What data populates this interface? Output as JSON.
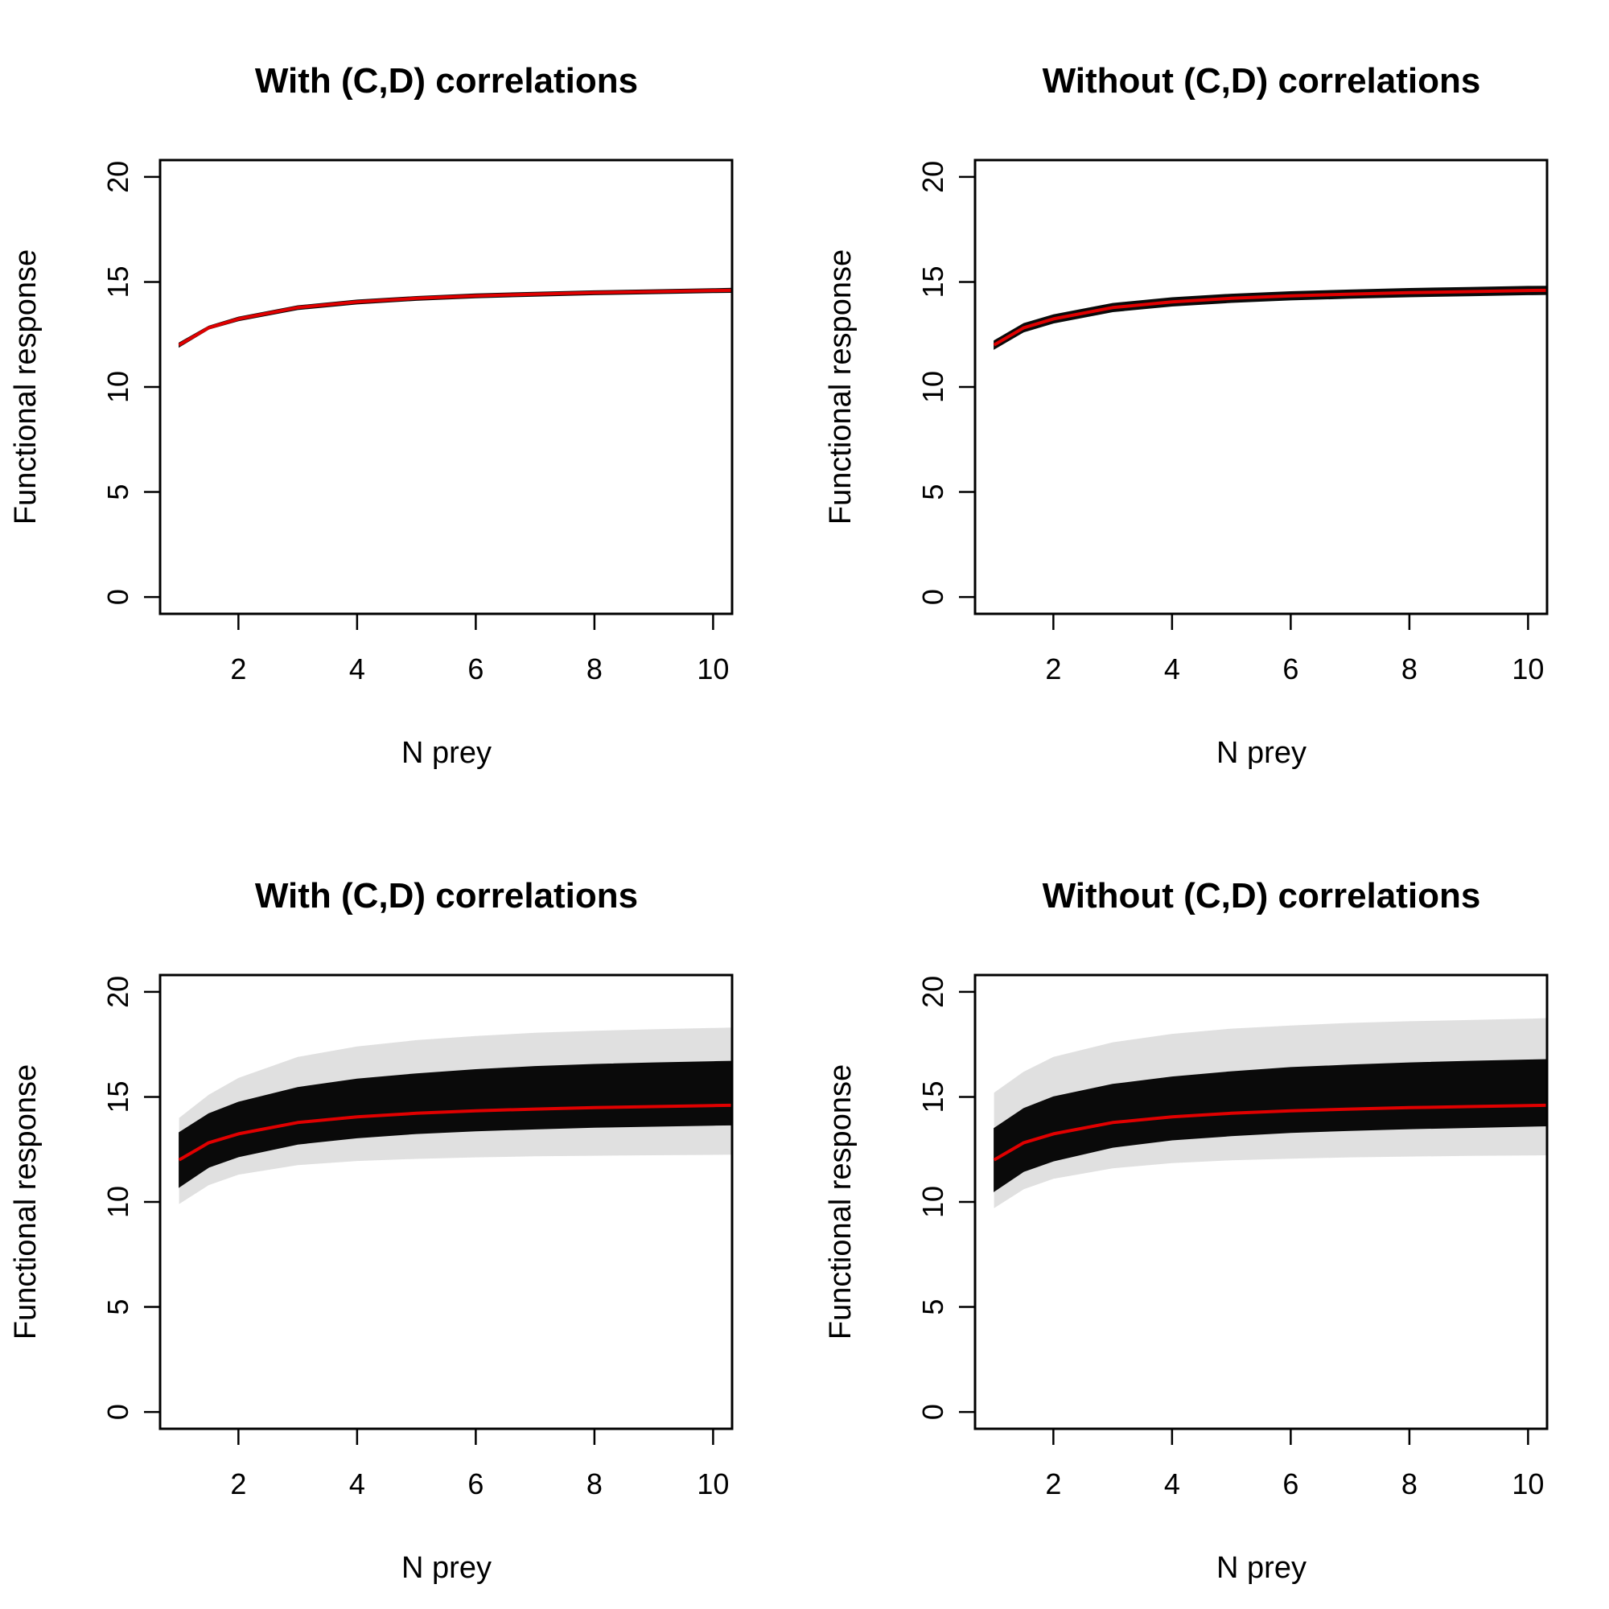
{
  "chart_data": [
    {
      "type": "line",
      "title": "With (C,D) correlations",
      "xlabel": "N prey",
      "ylabel": "Functional response",
      "xlim": [
        0.68,
        10.32
      ],
      "ylim": [
        -0.8,
        20.8
      ],
      "xticks": [
        2,
        4,
        6,
        8,
        10
      ],
      "xtick_labels": [
        "2",
        "4",
        "6",
        "8",
        "10"
      ],
      "yticks": [
        0,
        5,
        10,
        15,
        20
      ],
      "ytick_labels": [
        "0",
        "5",
        "10",
        "15",
        "20"
      ],
      "x": [
        1,
        1.5,
        2,
        3,
        4,
        5,
        6,
        7,
        8,
        9,
        10,
        10.32
      ],
      "series": [
        {
          "role": "mean",
          "color": "#e00000",
          "values": [
            12.0,
            12.82,
            13.24,
            13.78,
            14.05,
            14.22,
            14.34,
            14.42,
            14.49,
            14.54,
            14.59,
            14.6
          ]
        }
      ],
      "band": {
        "color": "#0a0a0a",
        "lower": [
          11.9,
          12.75,
          13.15,
          13.68,
          13.95,
          14.12,
          14.24,
          14.32,
          14.39,
          14.44,
          14.49,
          14.5
        ],
        "upper": [
          12.1,
          12.9,
          13.33,
          13.87,
          14.14,
          14.31,
          14.43,
          14.51,
          14.58,
          14.63,
          14.68,
          14.7
        ]
      },
      "grid": false
    },
    {
      "type": "line",
      "title": "Without (C,D) correlations",
      "xlabel": "N prey",
      "ylabel": "Functional response",
      "xlim": [
        0.68,
        10.32
      ],
      "ylim": [
        -0.8,
        20.8
      ],
      "xticks": [
        2,
        4,
        6,
        8,
        10
      ],
      "xtick_labels": [
        "2",
        "4",
        "6",
        "8",
        "10"
      ],
      "yticks": [
        0,
        5,
        10,
        15,
        20
      ],
      "ytick_labels": [
        "0",
        "5",
        "10",
        "15",
        "20"
      ],
      "x": [
        1,
        1.5,
        2,
        3,
        4,
        5,
        6,
        7,
        8,
        9,
        10,
        10.32
      ],
      "series": [
        {
          "role": "mean",
          "color": "#e00000",
          "values": [
            12.0,
            12.82,
            13.24,
            13.78,
            14.05,
            14.22,
            14.34,
            14.42,
            14.49,
            14.54,
            14.59,
            14.6
          ]
        }
      ],
      "band": {
        "color": "#0a0a0a",
        "lower": [
          11.8,
          12.62,
          13.04,
          13.58,
          13.85,
          14.02,
          14.14,
          14.22,
          14.29,
          14.34,
          14.39,
          14.4
        ],
        "upper": [
          12.2,
          13.02,
          13.44,
          13.98,
          14.25,
          14.42,
          14.54,
          14.62,
          14.69,
          14.74,
          14.79,
          14.8
        ]
      },
      "grid": false
    },
    {
      "type": "line",
      "title": "With (C,D) correlations",
      "xlabel": "N prey",
      "ylabel": "Functional response",
      "xlim": [
        0.68,
        10.32
      ],
      "ylim": [
        -0.8,
        20.8
      ],
      "xticks": [
        2,
        4,
        6,
        8,
        10
      ],
      "xtick_labels": [
        "2",
        "4",
        "6",
        "8",
        "10"
      ],
      "yticks": [
        0,
        5,
        10,
        15,
        20
      ],
      "ytick_labels": [
        "0",
        "5",
        "10",
        "15",
        "20"
      ],
      "x": [
        1,
        1.5,
        2,
        3,
        4,
        5,
        6,
        7,
        8,
        9,
        10,
        10.32
      ],
      "series": [
        {
          "role": "mean",
          "color": "#e00000",
          "values": [
            12.0,
            12.82,
            13.24,
            13.78,
            14.05,
            14.22,
            14.34,
            14.42,
            14.49,
            14.54,
            14.59,
            14.6
          ]
        }
      ],
      "band": {
        "color": "#0a0a0a",
        "lower": [
          10.7,
          11.65,
          12.15,
          12.75,
          13.05,
          13.25,
          13.38,
          13.47,
          13.55,
          13.6,
          13.65,
          13.66
        ],
        "upper": [
          13.3,
          14.2,
          14.75,
          15.45,
          15.85,
          16.1,
          16.3,
          16.45,
          16.55,
          16.62,
          16.68,
          16.7
        ]
      },
      "band_faint": {
        "color": "#bbbbbb",
        "lower": [
          9.9,
          10.8,
          11.3,
          11.75,
          11.95,
          12.05,
          12.12,
          12.17,
          12.2,
          12.22,
          12.24,
          12.25
        ],
        "upper": [
          14.0,
          15.1,
          15.9,
          16.9,
          17.4,
          17.7,
          17.9,
          18.05,
          18.15,
          18.22,
          18.28,
          18.3
        ]
      },
      "grid": false
    },
    {
      "type": "line",
      "title": "Without (C,D) correlations",
      "xlabel": "N prey",
      "ylabel": "Functional response",
      "xlim": [
        0.68,
        10.32
      ],
      "ylim": [
        -0.8,
        20.8
      ],
      "xticks": [
        2,
        4,
        6,
        8,
        10
      ],
      "xtick_labels": [
        "2",
        "4",
        "6",
        "8",
        "10"
      ],
      "yticks": [
        0,
        5,
        10,
        15,
        20
      ],
      "ytick_labels": [
        "0",
        "5",
        "10",
        "15",
        "20"
      ],
      "x": [
        1,
        1.5,
        2,
        3,
        4,
        5,
        6,
        7,
        8,
        9,
        10,
        10.32
      ],
      "series": [
        {
          "role": "mean",
          "color": "#e00000",
          "values": [
            12.0,
            12.82,
            13.24,
            13.78,
            14.05,
            14.22,
            14.34,
            14.42,
            14.49,
            14.54,
            14.59,
            14.6
          ]
        }
      ],
      "band": {
        "color": "#0a0a0a",
        "lower": [
          10.5,
          11.45,
          11.95,
          12.6,
          12.95,
          13.15,
          13.3,
          13.4,
          13.48,
          13.54,
          13.6,
          13.62
        ],
        "upper": [
          13.5,
          14.45,
          15.0,
          15.6,
          15.95,
          16.2,
          16.4,
          16.52,
          16.62,
          16.7,
          16.76,
          16.78
        ]
      },
      "band_faint": {
        "color": "#bbbbbb",
        "lower": [
          9.7,
          10.6,
          11.1,
          11.6,
          11.85,
          11.98,
          12.06,
          12.12,
          12.16,
          12.19,
          12.21,
          12.22
        ],
        "upper": [
          15.2,
          16.2,
          16.9,
          17.6,
          18.0,
          18.25,
          18.4,
          18.52,
          18.6,
          18.66,
          18.72,
          18.75
        ]
      },
      "grid": false
    }
  ]
}
